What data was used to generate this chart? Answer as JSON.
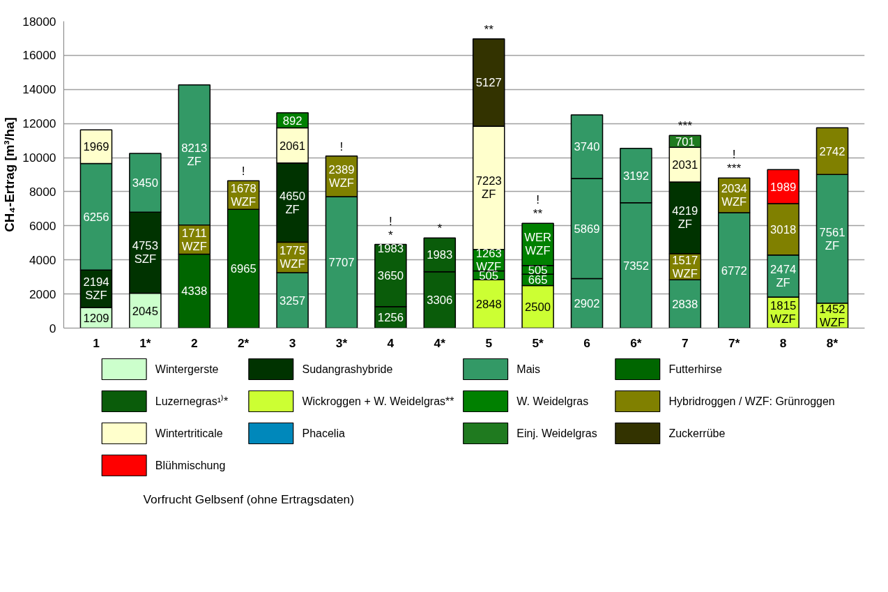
{
  "chart_data": {
    "type": "bar",
    "ylabel": "CH₄-Ertrag [m³/ha]",
    "categories": [
      "1",
      "1*",
      "2",
      "2*",
      "3",
      "3*",
      "4",
      "4*",
      "5",
      "5*",
      "6",
      "6*",
      "7",
      "7*",
      "8",
      "8*"
    ],
    "ylim": [
      0,
      18000
    ],
    "yticks": [
      0,
      2000,
      4000,
      6000,
      8000,
      10000,
      12000,
      14000,
      16000,
      18000
    ],
    "grid": "y",
    "legend": "bottom",
    "series": [
      {
        "name": "Wintergerste",
        "color": "#ccffcc",
        "values": [
          1209,
          2045,
          null,
          null,
          null,
          null,
          null,
          null,
          null,
          null,
          null,
          null,
          null,
          null,
          null,
          null
        ],
        "base": [
          0,
          0,
          null,
          null,
          null,
          null,
          null,
          null,
          null,
          null,
          null,
          null,
          null,
          null,
          null,
          null
        ],
        "value_labels": [
          "1209",
          "2045",
          null,
          null,
          null,
          null,
          null,
          null,
          null,
          null,
          null,
          null,
          null,
          null,
          null,
          null
        ]
      },
      {
        "name": "Sudangrashybride",
        "color": "#003300",
        "values": [
          2194,
          4753,
          null,
          null,
          4650,
          null,
          null,
          null,
          null,
          null,
          null,
          null,
          4219,
          null,
          null,
          null
        ],
        "base": [
          1209,
          2045,
          null,
          null,
          5032,
          null,
          null,
          null,
          null,
          null,
          null,
          null,
          4355,
          null,
          null,
          null
        ],
        "value_labels": [
          "2194\nSZF",
          "4753\nSZF",
          null,
          null,
          "4650\nZF",
          null,
          null,
          null,
          null,
          null,
          null,
          null,
          "4219\nZF",
          null,
          null,
          null
        ]
      },
      {
        "name": "Mais",
        "color": "#339966",
        "values": [
          6256,
          3450,
          8213,
          null,
          3257,
          7707,
          null,
          null,
          null,
          null,
          2902,
          7352,
          2838,
          6772,
          2474,
          7561
        ],
        "base": [
          3403,
          6798,
          6049,
          null,
          0,
          0,
          null,
          null,
          null,
          null,
          0,
          0,
          0,
          0,
          1815,
          1452
        ],
        "value_labels": [
          "6256",
          "3450",
          "8213\nZF",
          null,
          "3257",
          "7707",
          null,
          null,
          null,
          null,
          "2902",
          "7352",
          "2838",
          "6772",
          "2474\nZF",
          "7561\nZF"
        ]
      },
      {
        "name": "Futterhirse",
        "color": "#006600",
        "values": [
          null,
          null,
          4338,
          6965,
          null,
          null,
          null,
          null,
          null,
          null,
          null,
          null,
          null,
          null,
          null,
          null
        ],
        "base": [
          null,
          null,
          0,
          0,
          null,
          null,
          null,
          null,
          null,
          null,
          null,
          null,
          null,
          null,
          null,
          null
        ],
        "value_labels": [
          null,
          null,
          "4338",
          "6965",
          null,
          null,
          null,
          null,
          null,
          null,
          null,
          null,
          null,
          null,
          null,
          null
        ]
      },
      {
        "name": "Luzernegras¹⁾*",
        "color": "#0a5c0a",
        "values": [
          null,
          null,
          null,
          null,
          null,
          null,
          1256,
          3306,
          null,
          null,
          null,
          null,
          null,
          null,
          null,
          null
        ],
        "base": [
          null,
          null,
          null,
          null,
          null,
          null,
          0,
          0,
          null,
          null,
          null,
          null,
          null,
          null,
          null,
          null
        ],
        "value_labels": [
          null,
          null,
          null,
          null,
          null,
          null,
          "1256",
          "3306",
          null,
          null,
          null,
          null,
          null,
          null,
          null,
          null
        ]
      },
      {
        "name": "Wickroggen + W. Weidelgras**",
        "color": "#ccff33",
        "values": [
          null,
          null,
          null,
          null,
          null,
          null,
          null,
          null,
          2848,
          2500,
          null,
          null,
          null,
          null,
          1815,
          1452
        ],
        "base": [
          null,
          null,
          null,
          null,
          null,
          null,
          null,
          null,
          0,
          0,
          null,
          null,
          null,
          null,
          0,
          0
        ],
        "value_labels": [
          null,
          null,
          null,
          null,
          null,
          null,
          null,
          null,
          "2848",
          "2500",
          null,
          null,
          null,
          null,
          "1815\nWZF",
          "1452\nWZF"
        ]
      },
      {
        "name": "W. Weidelgras",
        "color": "#008000",
        "values": [
          null,
          null,
          null,
          null,
          892,
          null,
          null,
          null,
          505,
          665,
          null,
          null,
          null,
          null,
          null,
          null
        ],
        "base": [
          null,
          null,
          null,
          null,
          11743,
          null,
          null,
          null,
          2848,
          2500,
          null,
          null,
          null,
          null,
          null,
          null
        ],
        "value_labels": [
          null,
          null,
          null,
          null,
          "892",
          null,
          null,
          null,
          "505",
          "665",
          null,
          null,
          null,
          null,
          null,
          null
        ]
      },
      {
        "name": "Hybridroggen / WZF: Grünroggen",
        "color": "#808000",
        "values": [
          null,
          null,
          1711,
          1678,
          1775,
          2389,
          null,
          null,
          null,
          null,
          null,
          null,
          1517,
          2034,
          3018,
          2742
        ],
        "base": [
          null,
          null,
          4338,
          6965,
          3257,
          7707,
          null,
          null,
          null,
          null,
          null,
          null,
          2838,
          6772,
          4289,
          9013
        ],
        "value_labels": [
          null,
          null,
          "1711\nWZF",
          "1678\nWZF",
          "1775\nWZF",
          "2389\nWZF",
          null,
          null,
          null,
          null,
          null,
          null,
          "1517\nWZF",
          "2034\nWZF",
          "3018",
          "2742"
        ]
      },
      {
        "name": "Wintertriticale",
        "color": "#ffffcc",
        "values": [
          1969,
          null,
          null,
          null,
          2061,
          null,
          null,
          null,
          7223,
          null,
          null,
          null,
          2031,
          null,
          null,
          null
        ],
        "base": [
          9659,
          null,
          null,
          null,
          9682,
          null,
          null,
          null,
          4616,
          null,
          null,
          null,
          8574,
          null,
          null,
          null
        ],
        "value_labels": [
          "1969",
          null,
          null,
          null,
          "2061",
          null,
          null,
          null,
          "7223\nZF",
          null,
          null,
          null,
          "2031",
          null,
          null,
          null
        ]
      },
      {
        "name": "Phacelia",
        "color": "#0088bb",
        "values": [
          null,
          null,
          null,
          null,
          null,
          null,
          null,
          null,
          null,
          null,
          null,
          null,
          null,
          null,
          null,
          null
        ]
      },
      {
        "name": "Einj. Weidelgras",
        "color": "#1f7a1f",
        "values": [
          null,
          null,
          null,
          null,
          null,
          null,
          null,
          null,
          null,
          null,
          null,
          null,
          701,
          null,
          null,
          null
        ],
        "base": [
          null,
          null,
          null,
          null,
          null,
          null,
          null,
          null,
          null,
          null,
          null,
          null,
          10605,
          null,
          null,
          null
        ],
        "value_labels": [
          null,
          null,
          null,
          null,
          null,
          null,
          null,
          null,
          null,
          null,
          null,
          null,
          "701",
          null,
          null,
          null
        ]
      },
      {
        "name": "Zuckerrübe",
        "color": "#333300",
        "values": [
          null,
          null,
          null,
          null,
          null,
          null,
          null,
          null,
          5127,
          null,
          null,
          null,
          null,
          null,
          null,
          null
        ],
        "base": [
          null,
          null,
          null,
          null,
          null,
          null,
          null,
          null,
          11839,
          null,
          null,
          null,
          null,
          null,
          null,
          null
        ],
        "value_labels": [
          null,
          null,
          null,
          null,
          null,
          null,
          null,
          null,
          "5127",
          null,
          null,
          null,
          null,
          null,
          null,
          null
        ]
      },
      {
        "name": "Blühmischung",
        "color": "#ff0000",
        "values": [
          null,
          null,
          null,
          null,
          null,
          null,
          null,
          null,
          null,
          null,
          null,
          null,
          null,
          null,
          1989,
          null
        ],
        "base": [
          null,
          null,
          null,
          null,
          null,
          null,
          null,
          null,
          null,
          null,
          null,
          null,
          null,
          null,
          7307,
          null
        ],
        "value_labels": [
          null,
          null,
          null,
          null,
          null,
          null,
          null,
          null,
          null,
          null,
          null,
          null,
          null,
          null,
          "1989",
          null
        ]
      },
      {
        "color": "#339966",
        "values": [
          null,
          null,
          null,
          null,
          null,
          null,
          null,
          null,
          null,
          null,
          5869,
          3192,
          null,
          null,
          null,
          null
        ],
        "base": [
          null,
          null,
          null,
          null,
          null,
          null,
          null,
          null,
          null,
          null,
          2902,
          7352,
          null,
          null,
          null,
          null
        ],
        "value_labels": [
          null,
          null,
          null,
          null,
          null,
          null,
          null,
          null,
          null,
          null,
          "5869",
          "3192",
          null,
          null,
          null,
          null
        ]
      },
      {
        "color": "#339966",
        "values": [
          null,
          null,
          null,
          null,
          null,
          null,
          null,
          null,
          null,
          null,
          3740,
          null,
          null,
          null,
          null,
          null
        ],
        "base": [
          null,
          null,
          null,
          null,
          null,
          null,
          null,
          null,
          null,
          null,
          8771,
          null,
          null,
          null,
          null,
          null
        ],
        "value_labels": [
          null,
          null,
          null,
          null,
          null,
          null,
          null,
          null,
          null,
          null,
          "3740",
          null,
          null,
          null,
          null,
          null
        ]
      },
      {
        "color": "#0a5c0a",
        "values": [
          null,
          null,
          null,
          null,
          null,
          null,
          3650,
          1983,
          null,
          null,
          null,
          null,
          null,
          null,
          null,
          null
        ],
        "base": [
          null,
          null,
          null,
          null,
          null,
          null,
          1256,
          3306,
          null,
          null,
          null,
          null,
          null,
          null,
          null,
          null
        ],
        "value_labels": [
          null,
          null,
          null,
          null,
          null,
          null,
          "3650",
          "1983",
          null,
          null,
          null,
          null,
          null,
          null,
          null,
          null
        ]
      },
      {
        "color": "#008000",
        "values": [
          null,
          null,
          null,
          null,
          null,
          null,
          null,
          null,
          1263,
          505,
          null,
          null,
          null,
          null,
          null,
          null
        ],
        "base": [
          null,
          null,
          null,
          null,
          null,
          null,
          null,
          null,
          3353,
          3165,
          null,
          null,
          null,
          null,
          null,
          null
        ],
        "value_labels": [
          null,
          null,
          null,
          null,
          null,
          null,
          null,
          null,
          "1263\nWZF",
          "505",
          null,
          null,
          null,
          null,
          null,
          null
        ]
      },
      {
        "color": "#008000",
        "values": [
          null,
          null,
          null,
          null,
          null,
          null,
          null,
          null,
          null,
          2480,
          null,
          null,
          null,
          null,
          null,
          null
        ],
        "base": [
          null,
          null,
          null,
          null,
          null,
          null,
          null,
          null,
          null,
          3670,
          null,
          null,
          null,
          null,
          null,
          null
        ],
        "value_labels": [
          null,
          null,
          null,
          null,
          null,
          null,
          null,
          null,
          null,
          "WER\nWZF",
          null,
          null,
          null,
          null,
          null,
          null
        ]
      }
    ],
    "annotations": [
      {
        "text": "1983",
        "x": "4",
        "y": 4700
      },
      {
        "text": "!",
        "x": "2*",
        "y": 8643
      },
      {
        "text": "!",
        "x": "3*",
        "y": 10096
      },
      {
        "text": "*",
        "x": "4",
        "y": 4906
      },
      {
        "text": "!",
        "x": "4",
        "y": 4906
      },
      {
        "text": "*",
        "x": "4*",
        "y": 5289
      },
      {
        "text": "**",
        "x": "5",
        "y": 16966
      },
      {
        "text": "**",
        "x": "5*",
        "y": 6150
      },
      {
        "text": "!",
        "x": "5*",
        "y": 6150
      },
      {
        "text": "***",
        "x": "7",
        "y": 11306
      },
      {
        "text": "***",
        "x": "7*",
        "y": 8806
      },
      {
        "text": "!",
        "x": "7*",
        "y": 8806
      },
      "Vorfrucht Gelbsenf (ohne Ertragsdaten)"
    ]
  }
}
